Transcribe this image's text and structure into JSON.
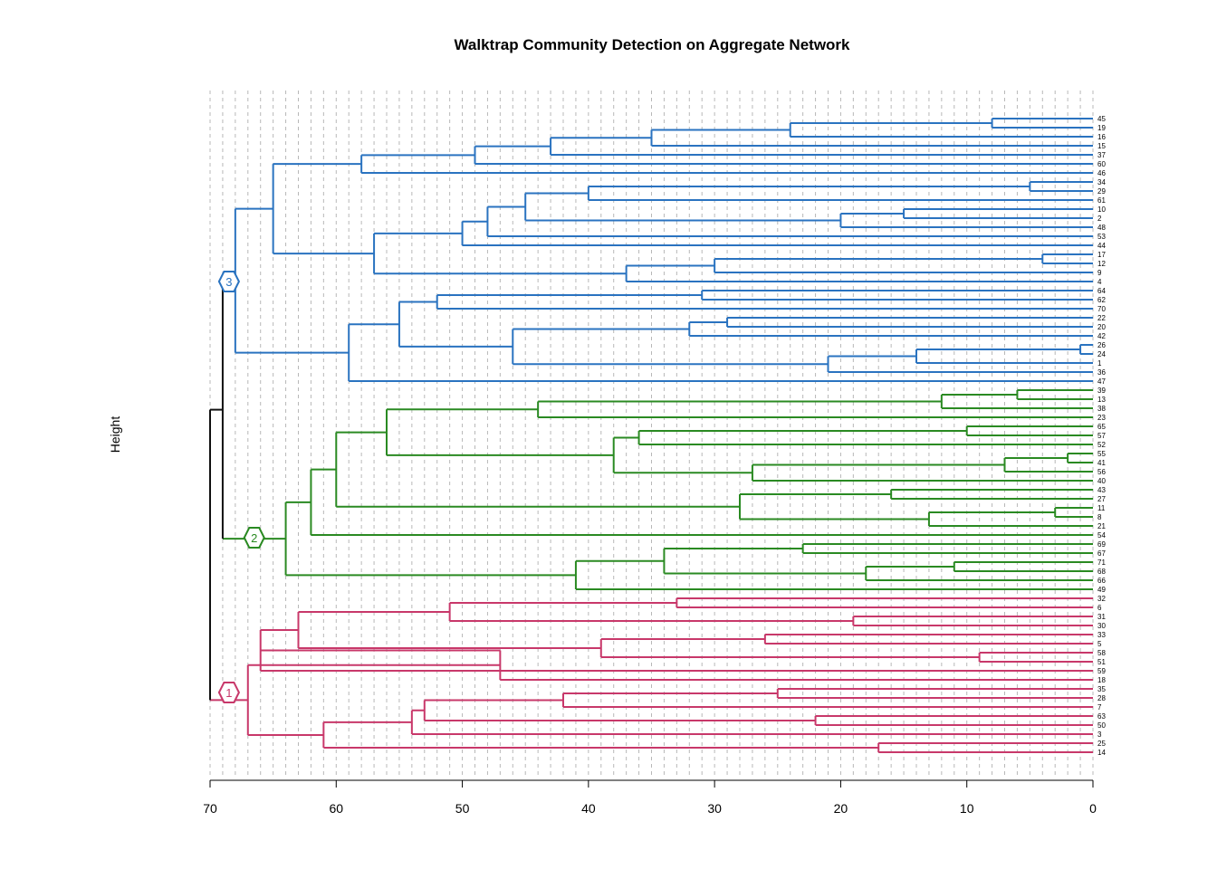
{
  "chart_data": {
    "type": "dendrogram",
    "title": "Walktrap Community Detection on Aggregate Network",
    "ylabel": "Height",
    "xlim": [
      70,
      0
    ],
    "ticks": [
      70,
      60,
      50,
      40,
      30,
      20,
      10,
      0
    ],
    "leaves": [
      "45",
      "19",
      "16",
      "15",
      "37",
      "60",
      "46",
      "34",
      "29",
      "61",
      "10",
      "2",
      "48",
      "53",
      "44",
      "17",
      "12",
      "9",
      "4",
      "64",
      "62",
      "70",
      "22",
      "20",
      "42",
      "26",
      "24",
      "1",
      "36",
      "47",
      "39",
      "13",
      "38",
      "23",
      "65",
      "57",
      "52",
      "55",
      "41",
      "56",
      "40",
      "43",
      "27",
      "11",
      "8",
      "21",
      "54",
      "69",
      "67",
      "71",
      "68",
      "66",
      "49",
      "32",
      "6",
      "31",
      "30",
      "33",
      "5",
      "58",
      "51",
      "59",
      "18",
      "35",
      "28",
      "7",
      "63",
      "50",
      "3",
      "25",
      "14"
    ],
    "communities": [
      {
        "label": "3",
        "color": "#2a73c0",
        "height": 68.5
      },
      {
        "label": "2",
        "color": "#2a8a22",
        "height": 66.5
      },
      {
        "label": "1",
        "color": "#c8386a",
        "height": 68.5
      }
    ],
    "root_color": "#111111",
    "guide_color": "#b8b8b8",
    "merges": [
      {
        "a": "45",
        "b": "19",
        "h": 8,
        "id": "m1"
      },
      {
        "a": "m1",
        "b": "16",
        "h": 24,
        "id": "m2"
      },
      {
        "a": "m2",
        "b": "15",
        "h": 35,
        "id": "m3"
      },
      {
        "a": "m3",
        "b": "37",
        "h": 43,
        "id": "m4"
      },
      {
        "a": "m4",
        "b": "60",
        "h": 49,
        "id": "m5"
      },
      {
        "a": "m5",
        "b": "46",
        "h": 58,
        "id": "m6"
      },
      {
        "a": "34",
        "b": "29",
        "h": 5,
        "id": "m7"
      },
      {
        "a": "m7",
        "b": "61",
        "h": 40,
        "id": "m8"
      },
      {
        "a": "10",
        "b": "2",
        "h": 15,
        "id": "m9"
      },
      {
        "a": "m9",
        "b": "48",
        "h": 20,
        "id": "m10"
      },
      {
        "a": "m8",
        "b": "m10",
        "h": 45,
        "id": "m11"
      },
      {
        "a": "m11",
        "b": "53",
        "h": 48,
        "id": "m12"
      },
      {
        "a": "m12",
        "b": "44",
        "h": 50,
        "id": "m13"
      },
      {
        "a": "17",
        "b": "12",
        "h": 4,
        "id": "m14"
      },
      {
        "a": "m14",
        "b": "9",
        "h": 30,
        "id": "m15"
      },
      {
        "a": "m15",
        "b": "4",
        "h": 37,
        "id": "m16"
      },
      {
        "a": "m13",
        "b": "m16",
        "h": 57,
        "id": "m17"
      },
      {
        "a": "m6",
        "b": "m17",
        "h": 65,
        "id": "m18"
      },
      {
        "a": "64",
        "b": "62",
        "h": 31,
        "id": "m19"
      },
      {
        "a": "m19",
        "b": "70",
        "h": 52,
        "id": "m20"
      },
      {
        "a": "22",
        "b": "20",
        "h": 29,
        "id": "m21"
      },
      {
        "a": "m21",
        "b": "42",
        "h": 32,
        "id": "m22"
      },
      {
        "a": "26",
        "b": "24",
        "h": 1,
        "id": "m23"
      },
      {
        "a": "m23",
        "b": "1",
        "h": 14,
        "id": "m24"
      },
      {
        "a": "m24",
        "b": "36",
        "h": 21,
        "id": "m25"
      },
      {
        "a": "m22",
        "b": "m25",
        "h": 46,
        "id": "m26"
      },
      {
        "a": "m20",
        "b": "m26",
        "h": 55,
        "id": "m27"
      },
      {
        "a": "m27",
        "b": "47",
        "h": 59,
        "id": "m28"
      },
      {
        "a": "m18",
        "b": "m28",
        "h": 68,
        "id": "m29"
      },
      {
        "a": "39",
        "b": "13",
        "h": 6,
        "id": "m30"
      },
      {
        "a": "m30",
        "b": "38",
        "h": 12,
        "id": "m31"
      },
      {
        "a": "m31",
        "b": "23",
        "h": 44,
        "id": "m32"
      },
      {
        "a": "65",
        "b": "57",
        "h": 10,
        "id": "m33"
      },
      {
        "a": "m33",
        "b": "52",
        "h": 36,
        "id": "m34"
      },
      {
        "a": "55",
        "b": "41",
        "h": 2,
        "id": "m35"
      },
      {
        "a": "m35",
        "b": "56",
        "h": 7,
        "id": "m36"
      },
      {
        "a": "m36",
        "b": "40",
        "h": 27,
        "id": "m37"
      },
      {
        "a": "m34",
        "b": "m37",
        "h": 38,
        "id": "m38"
      },
      {
        "a": "m32",
        "b": "m38",
        "h": 56,
        "id": "m39"
      },
      {
        "a": "43",
        "b": "27",
        "h": 16,
        "id": "m40"
      },
      {
        "a": "11",
        "b": "8",
        "h": 3,
        "id": "m41"
      },
      {
        "a": "m41",
        "b": "21",
        "h": 13,
        "id": "m42"
      },
      {
        "a": "m40",
        "b": "m42",
        "h": 28,
        "id": "m43"
      },
      {
        "a": "m39",
        "b": "m43",
        "h": 60,
        "id": "m44"
      },
      {
        "a": "m44",
        "b": "54",
        "h": 62,
        "id": "m45"
      },
      {
        "a": "69",
        "b": "67",
        "h": 23,
        "id": "m46"
      },
      {
        "a": "71",
        "b": "68",
        "h": 11,
        "id": "m47"
      },
      {
        "a": "m47",
        "b": "66",
        "h": 18,
        "id": "m48"
      },
      {
        "a": "m46",
        "b": "m48",
        "h": 34,
        "id": "m49"
      },
      {
        "a": "m49",
        "b": "49",
        "h": 41,
        "id": "m50"
      },
      {
        "a": "m45",
        "b": "m50",
        "h": 64,
        "id": "m51"
      },
      {
        "a": "m29",
        "b": "m51",
        "h": 69,
        "id": "m52"
      },
      {
        "a": "32",
        "b": "6",
        "h": 33,
        "id": "m53"
      },
      {
        "a": "31",
        "b": "30",
        "h": 19,
        "id": "m54"
      },
      {
        "a": "m53",
        "b": "m54",
        "h": 51,
        "id": "m55"
      },
      {
        "a": "33",
        "b": "5",
        "h": 26,
        "id": "m56"
      },
      {
        "a": "58",
        "b": "51",
        "h": 9,
        "id": "m57"
      },
      {
        "a": "m56",
        "b": "m57",
        "h": 39,
        "id": "m58"
      },
      {
        "a": "m55",
        "b": "m58",
        "h": 63,
        "id": "m59"
      },
      {
        "a": "m59",
        "b": "59",
        "h": 66,
        "id": "m60"
      },
      {
        "a": "m60",
        "b": "18",
        "h": 47,
        "id": "m61"
      },
      {
        "a": "35",
        "b": "28",
        "h": 25,
        "id": "m62"
      },
      {
        "a": "m62",
        "b": "7",
        "h": 42,
        "id": "m63"
      },
      {
        "a": "63",
        "b": "50",
        "h": 22,
        "id": "m64"
      },
      {
        "a": "m63",
        "b": "m64",
        "h": 53,
        "id": "m65"
      },
      {
        "a": "m65",
        "b": "3",
        "h": 54,
        "id": "m66"
      },
      {
        "a": "25",
        "b": "14",
        "h": 17,
        "id": "m67"
      },
      {
        "a": "m66",
        "b": "m67",
        "h": 61,
        "id": "m68"
      },
      {
        "a": "m61",
        "b": "m68",
        "h": 67,
        "id": "m69"
      },
      {
        "a": "m52",
        "b": "m69",
        "h": 70,
        "id": "root"
      }
    ]
  }
}
